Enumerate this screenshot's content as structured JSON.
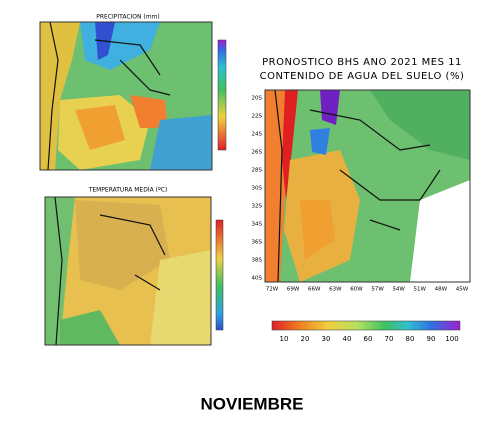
{
  "panels": [
    {
      "title": "PRECIPITACION (mm)"
    },
    {
      "title": "TEMPERATURA MEDIA (ºC)"
    }
  ],
  "main": {
    "title_lines": [
      "PRONOSTICO BHS ANO 2021 MES 11",
      "CONTENIDO DE AGUA DEL SUELO (%)"
    ],
    "y_labels": [
      "20S",
      "22S",
      "24S",
      "26S",
      "28S",
      "30S",
      "32S",
      "34S",
      "36S",
      "38S",
      "40S"
    ],
    "x_labels": [
      "72W",
      "69W",
      "66W",
      "63W",
      "60W",
      "57W",
      "54W",
      "51W",
      "48W",
      "45W"
    ],
    "colorbar_labels": [
      "10",
      "20",
      "30",
      "40",
      "60",
      "70",
      "80",
      "90",
      "100"
    ]
  },
  "caption": "NOVIEMBRE"
}
